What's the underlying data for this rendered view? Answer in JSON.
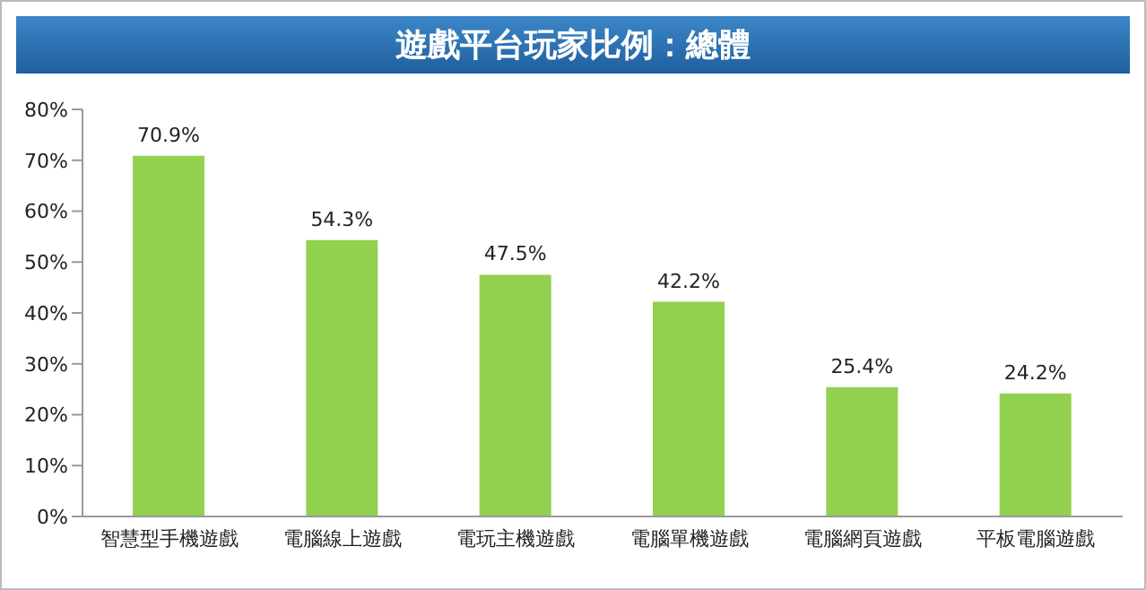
{
  "chart_data": {
    "type": "bar",
    "title": "遊戲平台玩家比例：總體",
    "categories": [
      "智慧型手機遊戲",
      "電腦線上遊戲",
      "電玩主機遊戲",
      "電腦單機遊戲",
      "電腦網頁遊戲",
      "平板電腦遊戲"
    ],
    "values": [
      70.9,
      54.3,
      47.5,
      42.2,
      25.4,
      24.2
    ],
    "value_labels": [
      "70.9%",
      "54.3%",
      "47.5%",
      "42.2%",
      "25.4%",
      "24.2%"
    ],
    "color": "#92d050",
    "ylim": [
      0,
      80
    ],
    "yticks": [
      {
        "value": 0,
        "label": "0%"
      },
      {
        "value": 10,
        "label": "10%"
      },
      {
        "value": 20,
        "label": "20%"
      },
      {
        "value": 30,
        "label": "30%"
      },
      {
        "value": 40,
        "label": "40%"
      },
      {
        "value": 50,
        "label": "50%"
      },
      {
        "value": 60,
        "label": "60%"
      },
      {
        "value": 70,
        "label": "70%"
      },
      {
        "value": 80,
        "label": "80%"
      }
    ],
    "grid": false,
    "legend": false
  }
}
